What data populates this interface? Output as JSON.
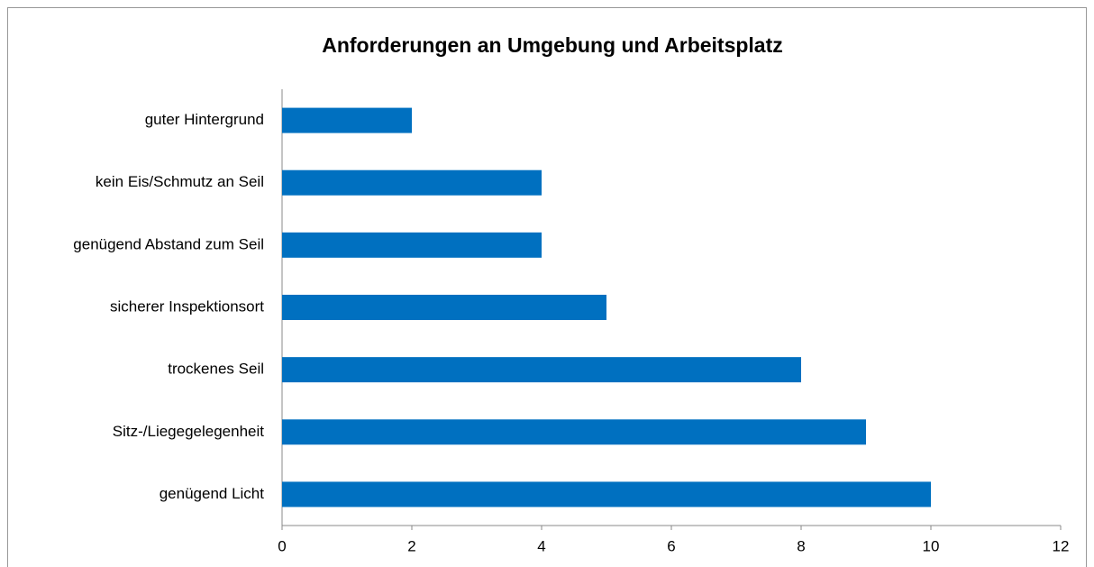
{
  "chart_data": {
    "type": "bar",
    "orientation": "horizontal",
    "title": "Anforderungen an Umgebung und Arbeitsplatz",
    "categories": [
      "guter Hintergrund",
      "kein Eis/Schmutz an Seil",
      "genügend Abstand zum Seil",
      "sicherer Inspektionsort",
      "trockenes Seil",
      "Sitz-/Liegegelegenheit",
      "genügend Licht"
    ],
    "values": [
      2,
      4,
      4,
      5,
      8,
      9,
      10
    ],
    "color": "#0070c0",
    "xlim": [
      0,
      12
    ],
    "xticks": [
      0,
      2,
      4,
      6,
      8,
      10,
      12
    ],
    "grid": false
  }
}
